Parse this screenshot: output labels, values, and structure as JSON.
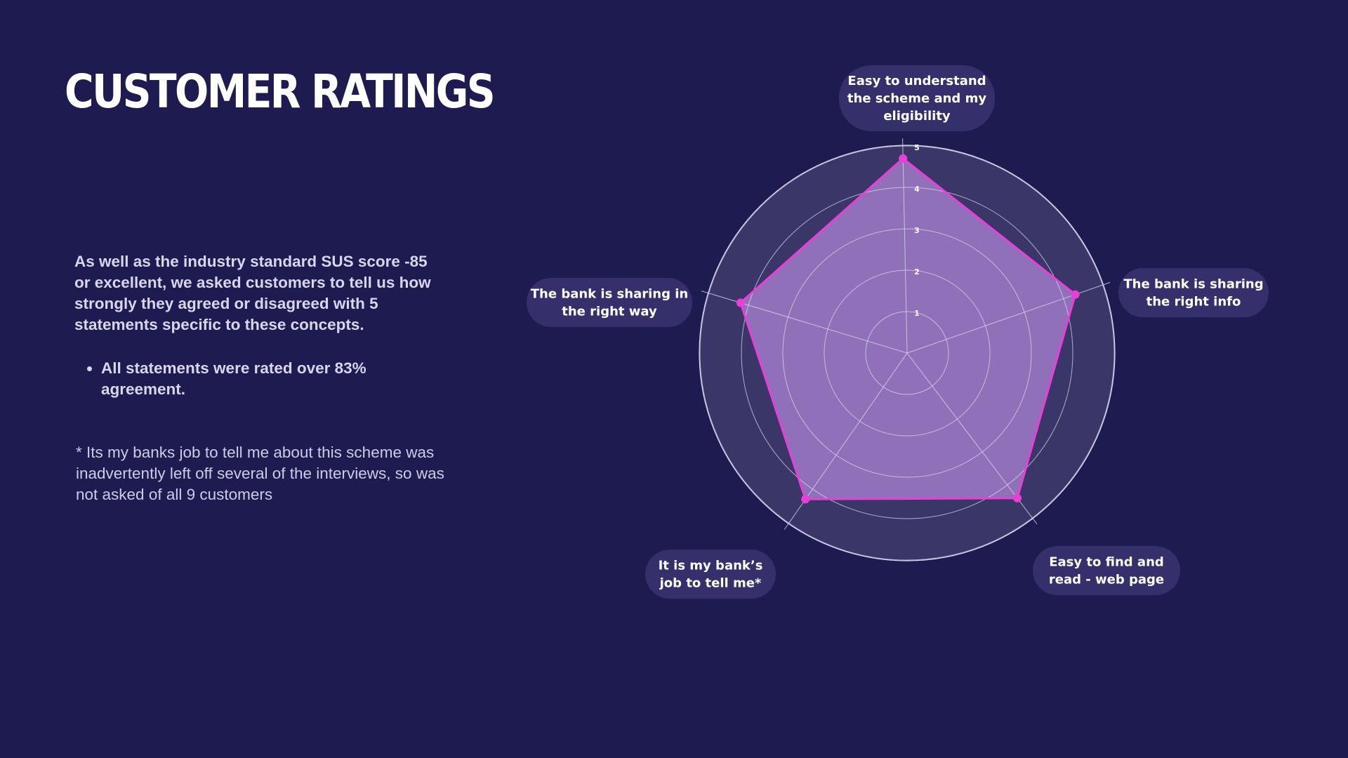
{
  "page": {
    "title": "CUSTOMER RATINGS",
    "intro": "As well as the industry standard SUS score -85 or excellent, we asked customers to tell us how strongly they agreed or disagreed with 5 statements specific to these concepts.",
    "bullets": [
      "All statements were rated over 83% agreement."
    ],
    "note": "* Its my banks job to tell  me about this scheme was inadvertently left off several of the interviews, so was not asked of all 9 customers"
  },
  "chart_data": {
    "type": "radar",
    "categories": [
      "Easy to understand the scheme and my eligibility",
      "The bank is sharing the right info",
      "Easy to find and read - web page",
      "It is my bank’s job to tell me*",
      "The bank is sharing in the right way"
    ],
    "category_lines": [
      [
        "Easy to understand",
        "the scheme and my",
        "eligibility"
      ],
      [
        "The bank is sharing",
        "the right info"
      ],
      [
        "Easy to find and",
        "read - web page"
      ],
      [
        "It is my bank’s",
        "job to tell me*"
      ],
      [
        "The bank is sharing in",
        "the right way"
      ]
    ],
    "values": [
      4.7,
      4.3,
      4.4,
      4.3,
      4.2
    ],
    "rlim": [
      0,
      5
    ],
    "ticks": [
      "1",
      "2",
      "3",
      "4",
      "5"
    ],
    "legend": "none",
    "colors": {
      "series_line": "#e83fd6",
      "series_fill": "#a07ac8",
      "outer_ring": "#3b3668",
      "grid": "#d9d6ec",
      "label_pill": "#35306b"
    }
  }
}
